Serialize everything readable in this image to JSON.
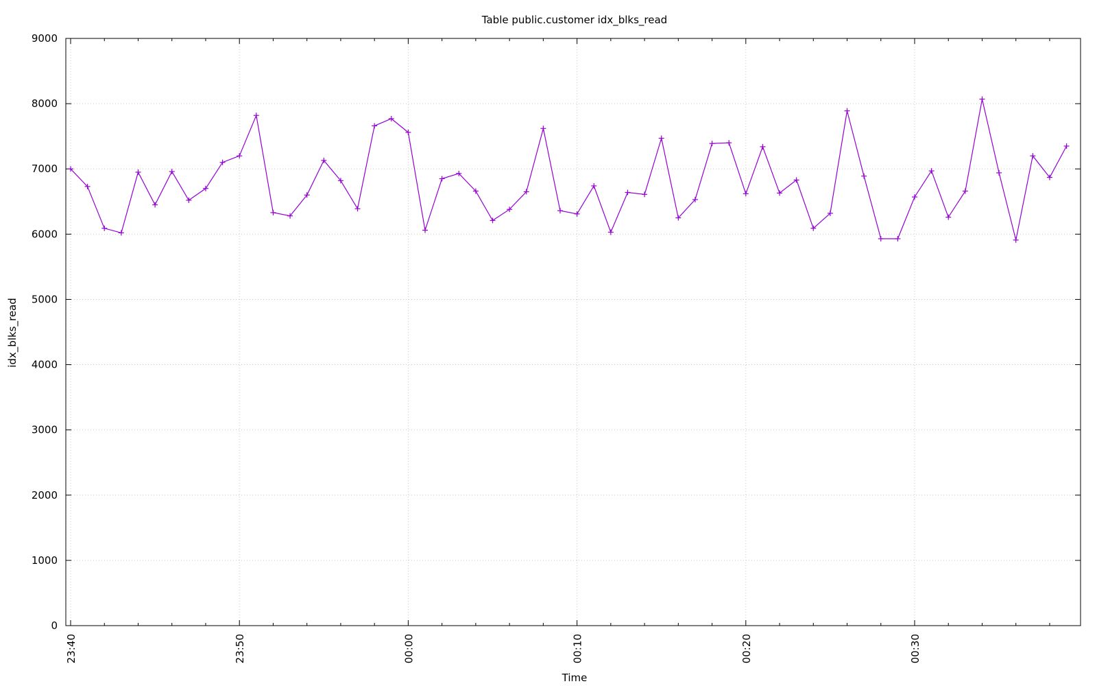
{
  "chart_data": {
    "type": "line",
    "title": "Table public.customer idx_blks_read",
    "xlabel": "Time",
    "ylabel": "idx_blks_read",
    "x_axis_kind": "time",
    "x_ticks": [
      "23:40",
      "23:50",
      "00:00",
      "00:10",
      "00:20",
      "00:30"
    ],
    "y_ticks": [
      0,
      1000,
      2000,
      3000,
      4000,
      5000,
      6000,
      7000,
      8000,
      9000
    ],
    "ylim": [
      0,
      9000
    ],
    "grid": true,
    "series_color": "#9400d3",
    "marker": "plus",
    "x": [
      "23:40",
      "23:41",
      "23:42",
      "23:43",
      "23:44",
      "23:45",
      "23:46",
      "23:47",
      "23:48",
      "23:49",
      "23:50",
      "23:51",
      "23:52",
      "23:53",
      "23:54",
      "23:55",
      "23:56",
      "23:57",
      "23:58",
      "23:59",
      "00:00",
      "00:01",
      "00:02",
      "00:03",
      "00:04",
      "00:05",
      "00:06",
      "00:07",
      "00:08",
      "00:09",
      "00:10",
      "00:11",
      "00:12",
      "00:13",
      "00:14",
      "00:15",
      "00:16",
      "00:17",
      "00:18",
      "00:19",
      "00:20",
      "00:21",
      "00:22",
      "00:23",
      "00:24",
      "00:25",
      "00:26",
      "00:27",
      "00:28",
      "00:29",
      "00:30",
      "00:31",
      "00:32",
      "00:33",
      "00:34",
      "00:35",
      "00:36",
      "00:37",
      "00:38",
      "00:39"
    ],
    "values": [
      7000,
      6730,
      6090,
      6020,
      6950,
      6450,
      6960,
      6520,
      6700,
      7100,
      7200,
      7820,
      6330,
      6280,
      6600,
      7130,
      6820,
      6390,
      7660,
      7770,
      7560,
      6060,
      6850,
      6930,
      6660,
      6210,
      6380,
      6650,
      7620,
      6360,
      6310,
      6740,
      6030,
      6640,
      6610,
      7470,
      6250,
      6530,
      7390,
      7400,
      6620,
      7340,
      6630,
      6830,
      6090,
      6320,
      7890,
      6890,
      5930,
      5930,
      6570,
      6970,
      6260,
      6660,
      8070,
      6940,
      5910,
      7200,
      6870,
      7350
    ]
  }
}
